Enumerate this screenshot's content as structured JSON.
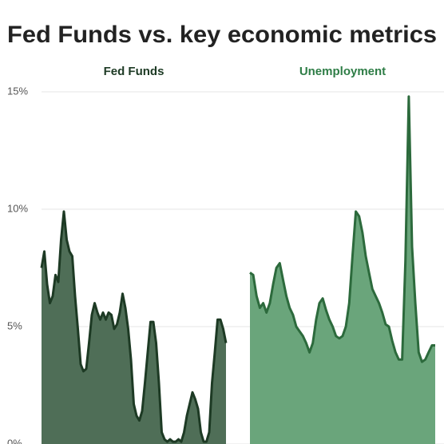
{
  "title": "Fed Funds vs. key economic metrics",
  "chart_data": [
    {
      "type": "area",
      "title": "Fed Funds",
      "color": "#4f6e57",
      "line_color": "#1d3a24",
      "title_color": "#1d3a24",
      "ylim": [
        0,
        15
      ],
      "yticks": [
        {
          "value": 0,
          "label": "0%"
        },
        {
          "value": 5,
          "label": "5%"
        },
        {
          "value": 10,
          "label": "10%"
        },
        {
          "value": 15,
          "label": "15%"
        }
      ],
      "grid": true,
      "values": [
        7.5,
        8.2,
        6.8,
        6.0,
        6.3,
        7.2,
        6.9,
        8.7,
        9.9,
        8.7,
        8.2,
        8.0,
        6.3,
        4.9,
        3.4,
        3.1,
        3.2,
        4.3,
        5.5,
        6.0,
        5.6,
        5.3,
        5.6,
        5.3,
        5.6,
        5.5,
        4.9,
        5.1,
        5.6,
        6.4,
        5.8,
        4.9,
        3.6,
        1.7,
        1.2,
        1.0,
        1.4,
        2.6,
        3.9,
        5.2,
        5.2,
        4.3,
        2.6,
        0.5,
        0.2,
        0.1,
        0.2,
        0.1,
        0.1,
        0.2,
        0.1,
        0.5,
        1.2,
        1.7,
        2.2,
        1.9,
        1.5,
        0.5,
        0.1,
        0.1,
        0.5,
        2.6,
        3.9,
        5.3,
        5.3,
        4.9,
        4.3
      ]
    },
    {
      "type": "area",
      "title": "Unemployment",
      "color": "#6aa57b",
      "line_color": "#2c6a3c",
      "title_color": "#2e7d46",
      "ylim": [
        0,
        15
      ],
      "yticks": [
        0,
        5,
        10,
        15
      ],
      "grid": true,
      "values": [
        7.3,
        7.2,
        6.3,
        5.8,
        6.0,
        5.6,
        6.0,
        6.8,
        7.5,
        7.7,
        7.0,
        6.3,
        5.8,
        5.5,
        5.0,
        4.8,
        4.6,
        4.3,
        3.9,
        4.3,
        5.3,
        6.0,
        6.2,
        5.7,
        5.3,
        5.0,
        4.6,
        4.5,
        4.6,
        5.0,
        6.0,
        8.0,
        9.9,
        9.7,
        9.0,
        8.0,
        7.3,
        6.6,
        6.3,
        6.0,
        5.6,
        5.1,
        5.0,
        4.4,
        3.9,
        3.6,
        3.6,
        7.8,
        14.8,
        8.4,
        6.0,
        3.9,
        3.5,
        3.6,
        3.9,
        4.2,
        4.2
      ]
    }
  ]
}
